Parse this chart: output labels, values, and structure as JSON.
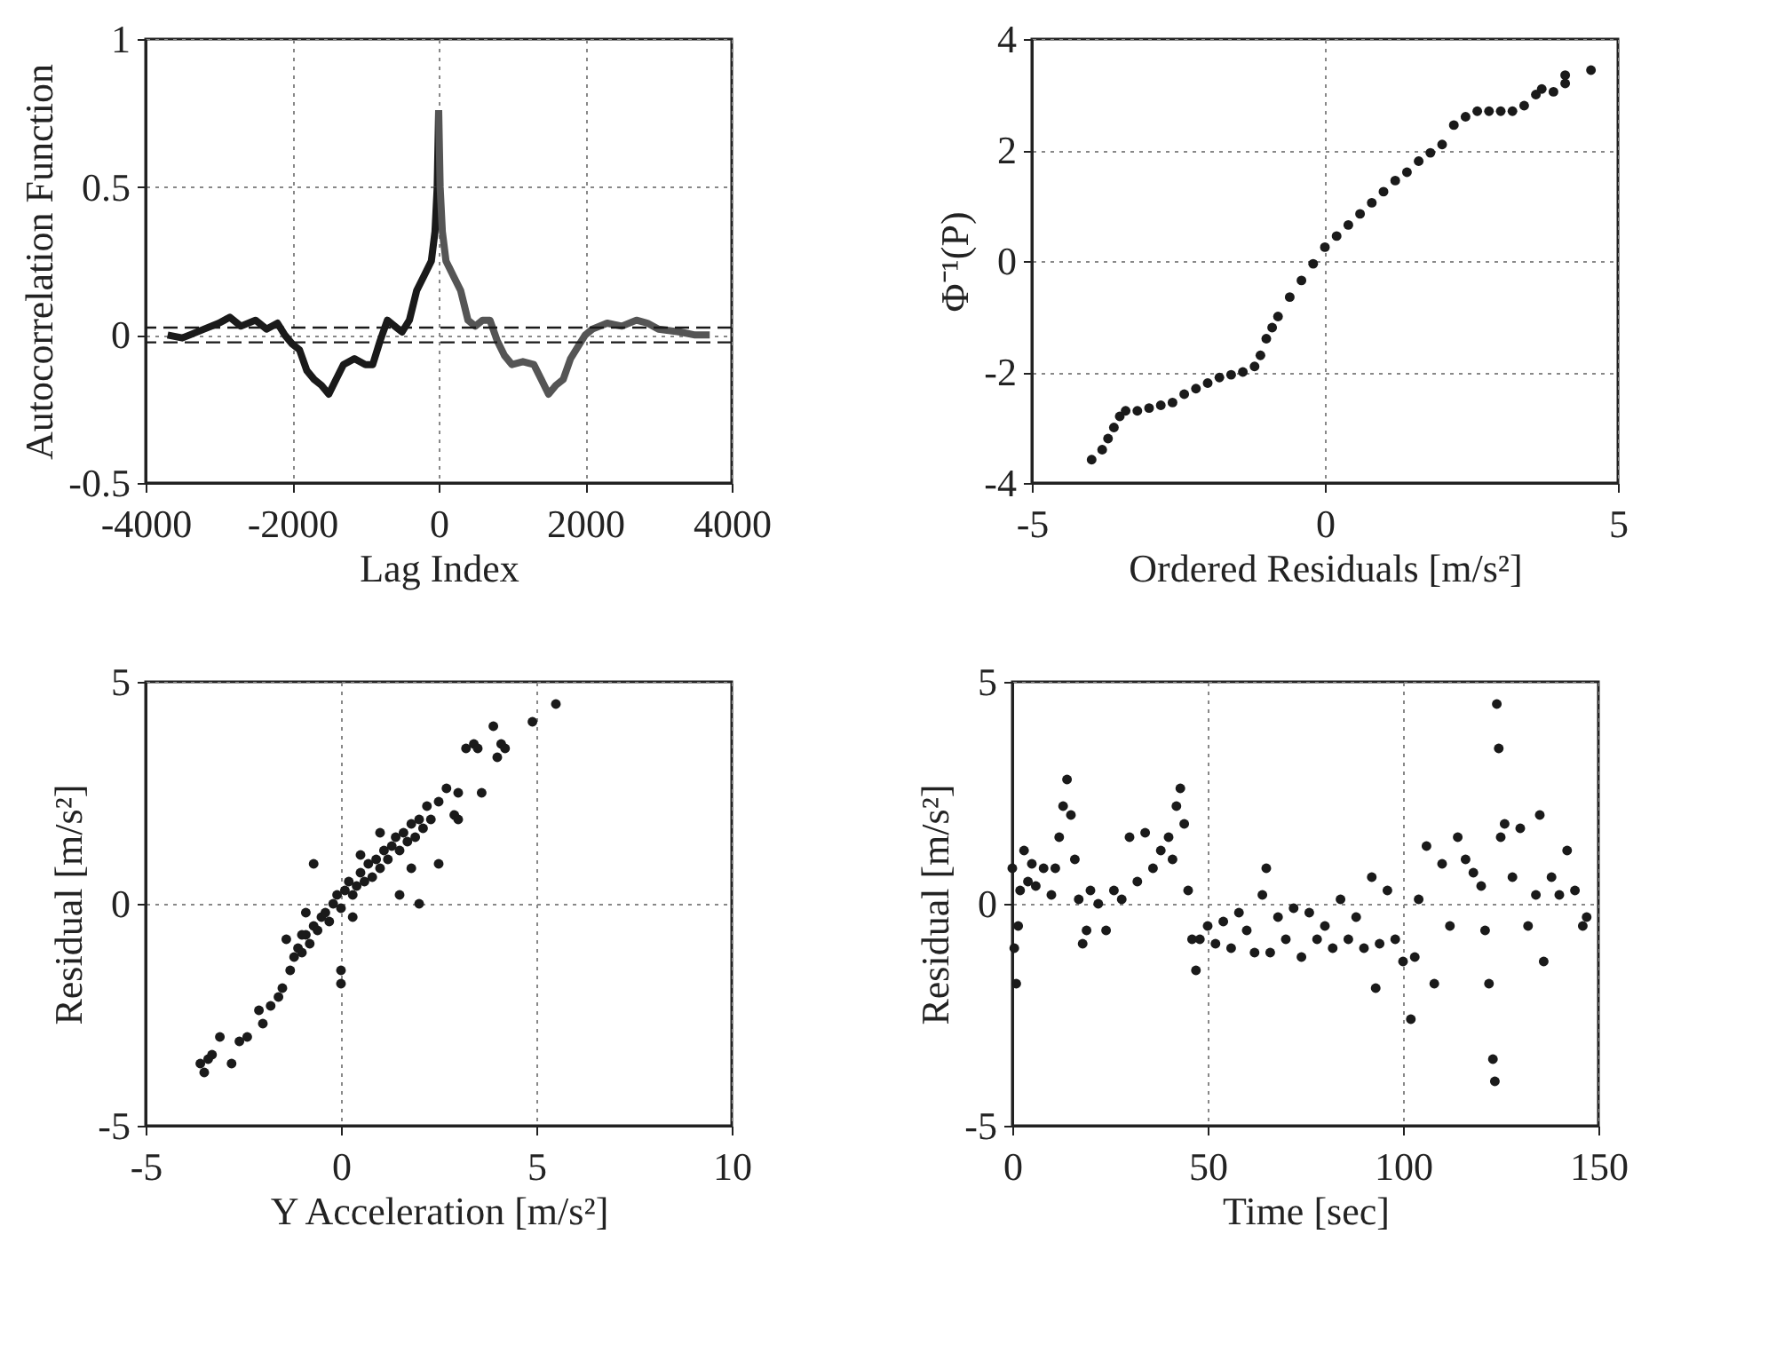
{
  "chart_data": [
    {
      "type": "line",
      "xlabel": "Lag Index",
      "ylabel": "Autocorrelation Function",
      "xlim": [
        -4000,
        4000
      ],
      "xticks": [
        -4000,
        -2000,
        0,
        2000,
        4000
      ],
      "ylim": [
        -0.5,
        1
      ],
      "yticks": [
        -0.5,
        0,
        0.5,
        1
      ],
      "grid": true,
      "line_style": "solid",
      "series": [
        {
          "color": "#1a1a1a",
          "x": [
            -3700,
            -3500,
            -3400,
            -3200,
            -3000,
            -2850,
            -2700,
            -2500,
            -2350,
            -2200,
            -2100,
            -2000,
            -1900,
            -1800,
            -1700,
            -1600,
            -1500,
            -1400,
            -1300,
            -1150,
            -1000,
            -900,
            -800,
            -700,
            -600,
            -500,
            -400,
            -300,
            -200,
            -100,
            -50,
            -20,
            0
          ],
          "values": [
            0,
            -0.01,
            0,
            0.02,
            0.04,
            0.06,
            0.03,
            0.05,
            0.02,
            0.04,
            0,
            -0.03,
            -0.05,
            -0.12,
            -0.15,
            -0.17,
            -0.2,
            -0.15,
            -0.1,
            -0.08,
            -0.1,
            -0.1,
            -0.02,
            0.05,
            0.03,
            0.01,
            0.05,
            0.15,
            0.2,
            0.25,
            0.35,
            0.5,
            0.76
          ]
        },
        {
          "color": "#555555",
          "x": [
            0,
            20,
            50,
            100,
            200,
            300,
            400,
            500,
            600,
            700,
            800,
            900,
            1000,
            1150,
            1300,
            1400,
            1500,
            1600,
            1700,
            1800,
            1900,
            2000,
            2100,
            2300,
            2500,
            2700,
            2850,
            3000,
            3300,
            3500,
            3700
          ],
          "values": [
            0.76,
            0.5,
            0.35,
            0.25,
            0.2,
            0.15,
            0.05,
            0.03,
            0.05,
            0.05,
            -0.02,
            -0.07,
            -0.1,
            -0.09,
            -0.1,
            -0.15,
            -0.2,
            -0.17,
            -0.15,
            -0.08,
            -0.04,
            0,
            0.02,
            0.04,
            0.03,
            0.05,
            0.04,
            0.02,
            0.01,
            0,
            0
          ]
        }
      ],
      "ref_lines": [
        {
          "axis": "y",
          "value": 0.025,
          "color": "#1a1a1a",
          "line_style": "dashed"
        },
        {
          "axis": "y",
          "value": -0.025,
          "color": "#1a1a1a",
          "line_style": "dashed"
        }
      ]
    },
    {
      "type": "scatter",
      "xlabel": "Ordered Residuals [m/s²]",
      "ylabel": "Φ⁻¹(P)",
      "xlim": [
        -5,
        5
      ],
      "xticks": [
        -5,
        0,
        5
      ],
      "ylim": [
        -4,
        4
      ],
      "yticks": [
        -4,
        -2,
        0,
        2,
        4
      ],
      "grid": true,
      "marker": "circle",
      "series": [
        {
          "color": "#1a1a1a",
          "x": [
            -3.98,
            -3.8,
            -3.7,
            -3.6,
            -3.5,
            -3.4,
            -3.2,
            -3.0,
            -2.8,
            -2.6,
            -2.4,
            -2.2,
            -2.0,
            -1.8,
            -1.6,
            -1.4,
            -1.2,
            -1.1,
            -1.0,
            -0.9,
            -0.8,
            -0.6,
            -0.4,
            -0.2,
            0,
            0.2,
            0.4,
            0.6,
            0.8,
            1.0,
            1.2,
            1.4,
            1.6,
            1.8,
            2.0,
            2.2,
            2.4,
            2.6,
            2.8,
            3.0,
            3.2,
            3.4,
            3.6,
            3.7,
            3.9,
            4.1,
            4.1,
            4.54
          ],
          "values": [
            -3.58,
            -3.4,
            -3.2,
            -3.0,
            -2.8,
            -2.7,
            -2.7,
            -2.65,
            -2.6,
            -2.55,
            -2.4,
            -2.3,
            -2.2,
            -2.1,
            -2.05,
            -2.0,
            -1.9,
            -1.7,
            -1.4,
            -1.2,
            -1.0,
            -0.65,
            -0.35,
            -0.05,
            0.25,
            0.45,
            0.65,
            0.85,
            1.05,
            1.25,
            1.45,
            1.6,
            1.8,
            1.95,
            2.1,
            2.45,
            2.6,
            2.7,
            2.7,
            2.7,
            2.7,
            2.8,
            3.0,
            3.1,
            3.05,
            3.2,
            3.35,
            3.44
          ]
        }
      ]
    },
    {
      "type": "scatter",
      "xlabel": "Y Acceleration [m/s²]",
      "ylabel": "Residual [m/s²]",
      "xlim": [
        -5,
        10
      ],
      "xticks": [
        -5,
        0,
        5,
        10
      ],
      "ylim": [
        -5,
        5
      ],
      "yticks": [
        -5,
        0,
        5
      ],
      "grid": true,
      "marker": "circle",
      "series": [
        {
          "color": "#1a1a1a",
          "x": [
            -3.6,
            -3.5,
            -3.4,
            -3.3,
            -3.1,
            -2.8,
            -2.6,
            -2.4,
            -2.1,
            -2.0,
            -1.8,
            -1.6,
            -1.5,
            -1.3,
            -1.2,
            -1.1,
            -1.0,
            -0.9,
            -0.8,
            -0.7,
            -0.6,
            -0.5,
            -0.4,
            -0.3,
            -0.2,
            -0.1,
            0,
            0.1,
            0.2,
            0.3,
            0.4,
            0.5,
            0.6,
            0.7,
            0.8,
            0.9,
            1.0,
            1.1,
            1.2,
            1.3,
            1.4,
            1.5,
            1.6,
            1.7,
            1.8,
            1.9,
            2.0,
            2.1,
            2.2,
            2.3,
            2.5,
            2.7,
            2.9,
            3.0,
            3.2,
            3.4,
            3.5,
            3.6,
            3.9,
            4.0,
            4.1,
            4.2,
            4.9,
            5.5,
            -0.7,
            0,
            0,
            2.0,
            1.5,
            -1.4,
            -0.9,
            0.5,
            1.0,
            2.5,
            3.0,
            -1.0,
            0.3,
            1.8
          ],
          "values": [
            -3.6,
            -3.8,
            -3.5,
            -3.4,
            -3.0,
            -3.6,
            -3.1,
            -3.0,
            -2.4,
            -2.7,
            -2.3,
            -2.1,
            -1.9,
            -1.5,
            -1.2,
            -1.0,
            -1.1,
            -0.7,
            -0.9,
            -0.5,
            -0.6,
            -0.3,
            -0.2,
            -0.4,
            0,
            0.2,
            -0.1,
            0.3,
            0.5,
            0.2,
            0.4,
            0.7,
            0.5,
            0.9,
            0.6,
            1.0,
            0.8,
            1.2,
            1.0,
            1.3,
            1.5,
            1.2,
            1.6,
            1.4,
            1.8,
            1.5,
            1.9,
            1.7,
            2.2,
            1.9,
            2.3,
            2.6,
            2.0,
            2.5,
            3.5,
            3.6,
            3.5,
            2.5,
            4.0,
            3.3,
            3.6,
            3.5,
            4.1,
            4.5,
            0.9,
            -1.5,
            -1.8,
            0,
            0.2,
            -0.8,
            -0.2,
            1.1,
            1.6,
            0.9,
            1.9,
            -0.7,
            -0.3,
            0.8
          ]
        }
      ]
    },
    {
      "type": "scatter",
      "xlabel": "Time [sec]",
      "ylabel": "Residual [m/s²]",
      "xlim": [
        0,
        150
      ],
      "xticks": [
        0,
        50,
        100,
        150
      ],
      "ylim": [
        -5,
        5
      ],
      "yticks": [
        -5,
        0,
        5
      ],
      "grid": true,
      "marker": "circle",
      "series": [
        {
          "color": "#1a1a1a",
          "x": [
            0,
            0.5,
            1,
            1.5,
            2,
            3,
            4,
            5,
            6,
            8,
            10,
            11,
            12,
            13,
            14,
            15,
            16,
            17,
            18,
            19,
            20,
            22,
            24,
            26,
            28,
            30,
            32,
            34,
            36,
            38,
            40,
            41,
            42,
            43,
            44,
            45,
            46,
            47,
            48,
            50,
            52,
            54,
            56,
            58,
            60,
            62,
            64,
            65,
            66,
            68,
            70,
            72,
            74,
            76,
            78,
            80,
            82,
            84,
            86,
            88,
            90,
            92,
            93,
            94,
            96,
            98,
            100,
            102,
            103,
            104,
            106,
            108,
            110,
            112,
            114,
            116,
            118,
            120,
            121,
            122,
            123,
            123.5,
            124,
            124.5,
            125,
            126,
            128,
            130,
            132,
            134,
            135,
            136,
            138,
            140,
            142,
            144,
            146,
            147
          ],
          "values": [
            0.8,
            -1.0,
            -1.8,
            -0.5,
            0.3,
            1.2,
            0.5,
            0.9,
            0.4,
            0.8,
            0.2,
            0.8,
            1.5,
            2.2,
            2.8,
            2.0,
            1.0,
            0.1,
            -0.9,
            -0.6,
            0.3,
            0,
            -0.6,
            0.3,
            0.1,
            1.5,
            0.5,
            1.6,
            0.8,
            1.2,
            1.5,
            1.0,
            2.2,
            2.6,
            1.8,
            0.3,
            -0.8,
            -1.5,
            -0.8,
            -0.5,
            -0.9,
            -0.4,
            -1.0,
            -0.2,
            -0.6,
            -1.1,
            0.2,
            0.8,
            -1.1,
            -0.3,
            -0.8,
            -0.1,
            -1.2,
            -0.2,
            -0.8,
            -0.5,
            -1.0,
            0.1,
            -0.8,
            -0.3,
            -1.0,
            0.6,
            -1.9,
            -0.9,
            0.3,
            -0.8,
            -1.3,
            -2.6,
            -1.2,
            0.1,
            1.3,
            -1.8,
            0.9,
            -0.5,
            1.5,
            1.0,
            0.7,
            0.4,
            -0.6,
            -1.8,
            -3.5,
            -4.0,
            4.5,
            3.5,
            1.5,
            1.8,
            0.6,
            1.7,
            -0.5,
            0.2,
            2.0,
            -1.3,
            0.6,
            0.2,
            1.2,
            0.3,
            -0.5,
            -0.3
          ]
        }
      ]
    }
  ]
}
